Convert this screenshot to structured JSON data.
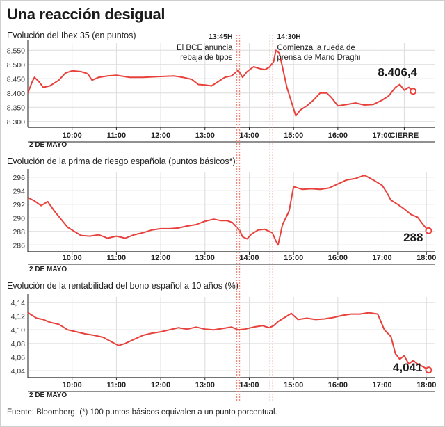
{
  "title": "Una reacción desigual",
  "footer": "Fuente: Bloomberg. (*) 100 puntos básicos equivalen a un punto porcentual.",
  "colors": {
    "series": "#e8413c",
    "dotted_line": "#f08a7c",
    "grid": "#dcdcdc",
    "axis": "#222222"
  },
  "annotations": [
    {
      "time_label": "13:45H",
      "text": [
        "El BCE anuncia",
        "rebaja de tipos"
      ],
      "x_hour": 13.75
    },
    {
      "time_label": "14:30H",
      "text": [
        "Comienza la rueda de",
        "prensa de Mario Draghi"
      ],
      "x_hour": 14.5
    }
  ],
  "chart_data": [
    {
      "type": "line",
      "title": "Evolución del Ibex 35 (en puntos)",
      "date_label": "2 DE MAYO",
      "x_tick_labels": [
        "10:00",
        "11:00",
        "12:00",
        "13:00",
        "14:00",
        "15:00",
        "16:00",
        "17:00",
        "CIERRE"
      ],
      "x_ticks": [
        10,
        11,
        12,
        13,
        14,
        15,
        16,
        17,
        17.5
      ],
      "xlim": [
        9,
        18.2
      ],
      "y_tick_labels": [
        "8.300",
        "8.350",
        "8.400",
        "8.450",
        "8.500",
        "8.550"
      ],
      "y_ticks": [
        8300,
        8350,
        8400,
        8450,
        8500,
        8550
      ],
      "ylim": [
        8280,
        8575
      ],
      "end_label": "8.406,4",
      "points": [
        [
          9.0,
          8400
        ],
        [
          9.1,
          8440
        ],
        [
          9.15,
          8455
        ],
        [
          9.25,
          8440
        ],
        [
          9.35,
          8420
        ],
        [
          9.5,
          8425
        ],
        [
          9.7,
          8445
        ],
        [
          9.85,
          8470
        ],
        [
          10.0,
          8478
        ],
        [
          10.2,
          8475
        ],
        [
          10.35,
          8468
        ],
        [
          10.45,
          8445
        ],
        [
          10.6,
          8455
        ],
        [
          10.8,
          8460
        ],
        [
          11.0,
          8462
        ],
        [
          11.3,
          8455
        ],
        [
          11.6,
          8455
        ],
        [
          12.0,
          8458
        ],
        [
          12.3,
          8460
        ],
        [
          12.5,
          8455
        ],
        [
          12.7,
          8448
        ],
        [
          12.85,
          8430
        ],
        [
          13.0,
          8428
        ],
        [
          13.15,
          8425
        ],
        [
          13.3,
          8440
        ],
        [
          13.45,
          8455
        ],
        [
          13.6,
          8460
        ],
        [
          13.75,
          8480
        ],
        [
          13.85,
          8455
        ],
        [
          13.95,
          8475
        ],
        [
          14.1,
          8492
        ],
        [
          14.25,
          8485
        ],
        [
          14.35,
          8482
        ],
        [
          14.45,
          8490
        ],
        [
          14.55,
          8510
        ],
        [
          14.6,
          8550
        ],
        [
          14.68,
          8540
        ],
        [
          14.75,
          8490
        ],
        [
          14.85,
          8420
        ],
        [
          14.95,
          8370
        ],
        [
          15.05,
          8320
        ],
        [
          15.15,
          8340
        ],
        [
          15.3,
          8355
        ],
        [
          15.45,
          8375
        ],
        [
          15.6,
          8400
        ],
        [
          15.75,
          8400
        ],
        [
          15.85,
          8385
        ],
        [
          16.0,
          8355
        ],
        [
          16.2,
          8360
        ],
        [
          16.4,
          8365
        ],
        [
          16.6,
          8358
        ],
        [
          16.8,
          8360
        ],
        [
          17.0,
          8375
        ],
        [
          17.15,
          8390
        ],
        [
          17.3,
          8420
        ],
        [
          17.4,
          8430
        ],
        [
          17.5,
          8410
        ],
        [
          17.6,
          8420
        ],
        [
          17.7,
          8406
        ]
      ]
    },
    {
      "type": "line",
      "title": "Evolución de la prima de riesgo española (puntos básicos*)",
      "date_label": "2 DE MAYO",
      "x_tick_labels": [
        "10:00",
        "11:00",
        "12:00",
        "13:00",
        "14:00",
        "15:00",
        "16:00",
        "17:00",
        "18:00"
      ],
      "x_ticks": [
        10,
        11,
        12,
        13,
        14,
        15,
        16,
        17,
        18
      ],
      "xlim": [
        9,
        18.2
      ],
      "y_tick_labels": [
        "286",
        "288",
        "290",
        "292",
        "294",
        "296"
      ],
      "y_ticks": [
        286,
        288,
        290,
        292,
        294,
        296
      ],
      "ylim": [
        285,
        296.8
      ],
      "end_label": "288",
      "points": [
        [
          9.0,
          293
        ],
        [
          9.15,
          292.5
        ],
        [
          9.3,
          291.8
        ],
        [
          9.45,
          292.4
        ],
        [
          9.6,
          291.0
        ],
        [
          9.75,
          289.8
        ],
        [
          9.9,
          288.6
        ],
        [
          10.05,
          288.0
        ],
        [
          10.2,
          287.4
        ],
        [
          10.4,
          287.3
        ],
        [
          10.6,
          287.5
        ],
        [
          10.8,
          287.0
        ],
        [
          11.0,
          287.3
        ],
        [
          11.2,
          287.0
        ],
        [
          11.4,
          287.5
        ],
        [
          11.6,
          287.8
        ],
        [
          11.8,
          288.2
        ],
        [
          12.0,
          288.4
        ],
        [
          12.2,
          288.4
        ],
        [
          12.4,
          288.5
        ],
        [
          12.6,
          288.8
        ],
        [
          12.8,
          289.0
        ],
        [
          13.0,
          289.5
        ],
        [
          13.2,
          289.8
        ],
        [
          13.35,
          289.6
        ],
        [
          13.5,
          289.6
        ],
        [
          13.62,
          289.3
        ],
        [
          13.72,
          288.6
        ],
        [
          13.78,
          288.2
        ],
        [
          13.85,
          287.2
        ],
        [
          13.95,
          286.9
        ],
        [
          14.05,
          287.6
        ],
        [
          14.2,
          288.2
        ],
        [
          14.35,
          288.3
        ],
        [
          14.45,
          288.0
        ],
        [
          14.52,
          287.8
        ],
        [
          14.6,
          286.6
        ],
        [
          14.65,
          286.0
        ],
        [
          14.75,
          289.0
        ],
        [
          14.9,
          291.0
        ],
        [
          15.0,
          294.6
        ],
        [
          15.2,
          294.2
        ],
        [
          15.4,
          294.3
        ],
        [
          15.6,
          294.2
        ],
        [
          15.8,
          294.4
        ],
        [
          16.0,
          295.0
        ],
        [
          16.2,
          295.6
        ],
        [
          16.4,
          295.8
        ],
        [
          16.6,
          296.3
        ],
        [
          16.8,
          295.6
        ],
        [
          17.0,
          294.8
        ],
        [
          17.1,
          293.8
        ],
        [
          17.2,
          292.6
        ],
        [
          17.35,
          292.0
        ],
        [
          17.5,
          291.3
        ],
        [
          17.65,
          290.5
        ],
        [
          17.8,
          290.1
        ],
        [
          17.95,
          288.8
        ],
        [
          18.05,
          288.1
        ]
      ]
    },
    {
      "type": "line",
      "title": "Evolución de la rentabilidad del bono español a 10 años (%)",
      "date_label": "2 DE MAYO",
      "x_tick_labels": [
        "10:00",
        "11:00",
        "12:00",
        "13:00",
        "14:00",
        "15:00",
        "16:00",
        "17:00",
        "18:00"
      ],
      "x_ticks": [
        10,
        11,
        12,
        13,
        14,
        15,
        16,
        17,
        18
      ],
      "xlim": [
        9,
        18.2
      ],
      "y_tick_labels": [
        "4,04",
        "4,06",
        "4,08",
        "4,10",
        "4,12",
        "4,14"
      ],
      "y_ticks": [
        4.04,
        4.06,
        4.08,
        4.1,
        4.12,
        4.14
      ],
      "ylim": [
        4.03,
        4.148
      ],
      "end_label": "4,041",
      "points": [
        [
          9.0,
          4.125
        ],
        [
          9.1,
          4.121
        ],
        [
          9.2,
          4.117
        ],
        [
          9.35,
          4.115
        ],
        [
          9.5,
          4.111
        ],
        [
          9.7,
          4.108
        ],
        [
          9.9,
          4.1
        ],
        [
          10.1,
          4.097
        ],
        [
          10.3,
          4.094
        ],
        [
          10.5,
          4.092
        ],
        [
          10.7,
          4.089
        ],
        [
          10.9,
          4.082
        ],
        [
          11.05,
          4.077
        ],
        [
          11.2,
          4.08
        ],
        [
          11.4,
          4.086
        ],
        [
          11.6,
          4.092
        ],
        [
          11.8,
          4.095
        ],
        [
          12.0,
          4.097
        ],
        [
          12.2,
          4.1
        ],
        [
          12.4,
          4.103
        ],
        [
          12.6,
          4.101
        ],
        [
          12.8,
          4.104
        ],
        [
          13.0,
          4.101
        ],
        [
          13.2,
          4.1
        ],
        [
          13.4,
          4.102
        ],
        [
          13.6,
          4.104
        ],
        [
          13.75,
          4.1
        ],
        [
          13.9,
          4.101
        ],
        [
          14.1,
          4.104
        ],
        [
          14.3,
          4.106
        ],
        [
          14.45,
          4.103
        ],
        [
          14.55,
          4.106
        ],
        [
          14.65,
          4.112
        ],
        [
          14.8,
          4.118
        ],
        [
          14.95,
          4.124
        ],
        [
          15.1,
          4.115
        ],
        [
          15.3,
          4.117
        ],
        [
          15.5,
          4.115
        ],
        [
          15.7,
          4.116
        ],
        [
          15.9,
          4.118
        ],
        [
          16.1,
          4.121
        ],
        [
          16.3,
          4.123
        ],
        [
          16.5,
          4.123
        ],
        [
          16.7,
          4.125
        ],
        [
          16.9,
          4.123
        ],
        [
          17.05,
          4.1
        ],
        [
          17.2,
          4.09
        ],
        [
          17.3,
          4.065
        ],
        [
          17.4,
          4.057
        ],
        [
          17.5,
          4.062
        ],
        [
          17.6,
          4.05
        ],
        [
          17.7,
          4.055
        ],
        [
          17.8,
          4.05
        ],
        [
          17.95,
          4.045
        ],
        [
          18.05,
          4.041
        ]
      ]
    }
  ]
}
